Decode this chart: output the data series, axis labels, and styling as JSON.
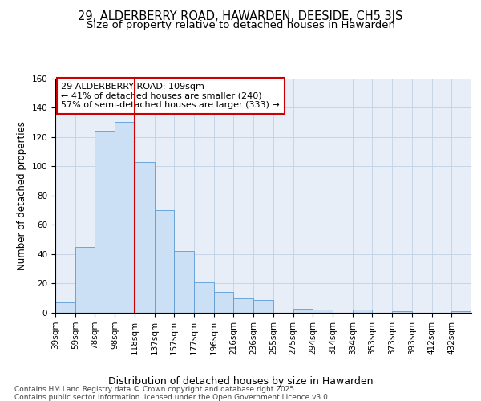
{
  "title": "29, ALDERBERRY ROAD, HAWARDEN, DEESIDE, CH5 3JS",
  "subtitle": "Size of property relative to detached houses in Hawarden",
  "xlabel": "Distribution of detached houses by size in Hawarden",
  "ylabel": "Number of detached properties",
  "bin_labels": [
    "39sqm",
    "59sqm",
    "78sqm",
    "98sqm",
    "118sqm",
    "137sqm",
    "157sqm",
    "177sqm",
    "196sqm",
    "216sqm",
    "236sqm",
    "255sqm",
    "275sqm",
    "294sqm",
    "314sqm",
    "334sqm",
    "353sqm",
    "373sqm",
    "393sqm",
    "412sqm",
    "432sqm"
  ],
  "bar_heights": [
    7,
    45,
    124,
    130,
    103,
    70,
    42,
    21,
    14,
    10,
    9,
    0,
    3,
    2,
    0,
    2,
    0,
    1,
    0,
    0,
    1
  ],
  "bar_color": "#cce0f5",
  "bar_edge_color": "#5b9bd5",
  "vline_color": "#cc0000",
  "vline_x": 4,
  "annotation_text": "29 ALDERBERRY ROAD: 109sqm\n← 41% of detached houses are smaller (240)\n57% of semi-detached houses are larger (333) →",
  "annotation_box_color": "#cc0000",
  "grid_color": "#c8d4e8",
  "background_color": "#e8eef8",
  "ylim": [
    0,
    160
  ],
  "yticks": [
    0,
    20,
    40,
    60,
    80,
    100,
    120,
    140,
    160
  ],
  "footer_text": "Contains HM Land Registry data © Crown copyright and database right 2025.\nContains public sector information licensed under the Open Government Licence v3.0.",
  "title_fontsize": 10.5,
  "subtitle_fontsize": 9.5,
  "xlabel_fontsize": 9,
  "ylabel_fontsize": 8.5,
  "tick_fontsize": 7.5,
  "annot_fontsize": 8,
  "footer_fontsize": 6.5
}
